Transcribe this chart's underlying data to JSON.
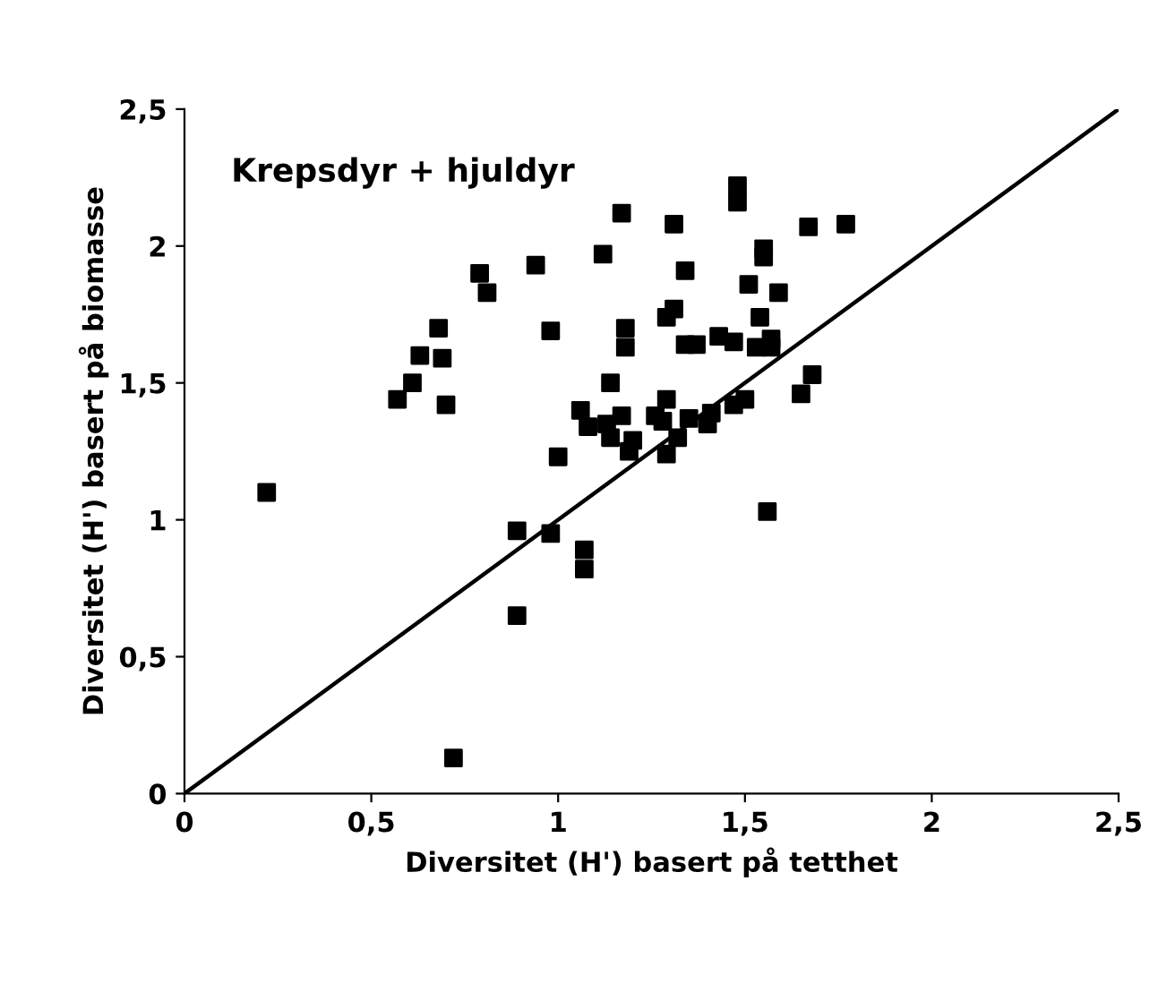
{
  "chart_data": {
    "type": "scatter",
    "title": "Krepsdyr + hjuldyr",
    "xlabel": "Diversitet (H') basert på tetthet",
    "ylabel": "Diversitet (H') basert på biomasse",
    "xlim": [
      0,
      2.5
    ],
    "ylim": [
      0,
      2.5
    ],
    "xticks": [
      0,
      {
        "value": 0.5,
        "label": "0,5"
      },
      1,
      {
        "value": 1.5,
        "label": "1,5"
      },
      2,
      {
        "value": 2.5,
        "label": "2,5"
      }
    ],
    "yticks": [
      0,
      {
        "value": 0.5,
        "label": "0,5"
      },
      1,
      {
        "value": 1.5,
        "label": "1,5"
      },
      2,
      {
        "value": 2.5,
        "label": "2,5"
      }
    ],
    "grid": false,
    "legend": false,
    "marker": "square",
    "series": [
      {
        "color": "#000000",
        "x": [
          0.22,
          0.57,
          0.61,
          0.63,
          0.68,
          0.69,
          0.7,
          0.79,
          0.81,
          0.94,
          0.98,
          1.0,
          0.89,
          0.98,
          1.07,
          1.07,
          0.89,
          0.72,
          1.17,
          1.31,
          1.48,
          1.48,
          1.67,
          1.77,
          1.55,
          1.55,
          1.12,
          1.34,
          1.51,
          1.59,
          1.31,
          1.29,
          1.54,
          1.18,
          1.18,
          1.34,
          1.37,
          1.43,
          1.47,
          1.53,
          1.57,
          1.57,
          1.14,
          1.68,
          1.65,
          1.29,
          1.06,
          1.5,
          1.47,
          1.08,
          1.17,
          1.13,
          1.26,
          1.28,
          1.35,
          1.41,
          1.4,
          1.14,
          1.2,
          1.19,
          1.32,
          1.29,
          1.56
        ],
        "values": [
          1.1,
          1.44,
          1.5,
          1.6,
          1.7,
          1.59,
          1.42,
          1.9,
          1.83,
          1.93,
          1.69,
          1.23,
          0.96,
          0.95,
          0.89,
          0.82,
          0.65,
          0.13,
          2.12,
          2.08,
          2.22,
          2.16,
          2.07,
          2.08,
          1.99,
          1.96,
          1.97,
          1.91,
          1.86,
          1.83,
          1.77,
          1.74,
          1.74,
          1.7,
          1.63,
          1.64,
          1.64,
          1.67,
          1.65,
          1.63,
          1.66,
          1.63,
          1.5,
          1.53,
          1.46,
          1.44,
          1.4,
          1.44,
          1.42,
          1.34,
          1.38,
          1.35,
          1.38,
          1.36,
          1.37,
          1.39,
          1.35,
          1.3,
          1.29,
          1.25,
          1.3,
          1.24,
          1.03
        ]
      },
      {
        "type": "line",
        "color": "#000000",
        "marker": "none",
        "line_style": "solid",
        "x": [
          0,
          2.5
        ],
        "values": [
          0,
          2.5
        ]
      }
    ]
  }
}
